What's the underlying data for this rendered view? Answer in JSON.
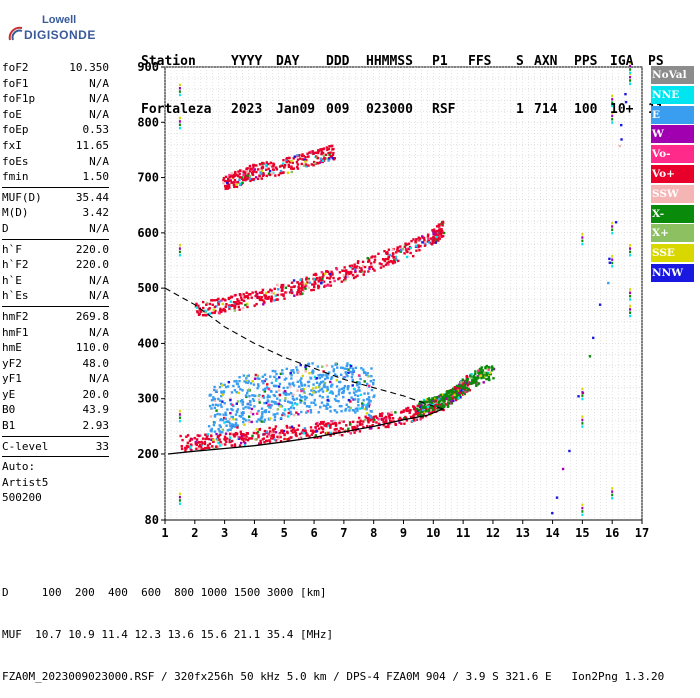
{
  "logo": {
    "top": "Lowell",
    "bottom": "DIGISONDE"
  },
  "header": {
    "labels": [
      "Station",
      "YYYY",
      "DAY",
      "DDD",
      "HHMMSS",
      "P1",
      "FFS",
      "S",
      "AXN",
      "PPS",
      "IGA",
      "PS"
    ],
    "values": [
      "Fortaleza",
      "2023",
      "Jan09",
      "009",
      "023000",
      "RSF",
      "",
      "1",
      "714",
      "100",
      "10+",
      "11"
    ]
  },
  "params": {
    "group1": [
      {
        "k": "foF2",
        "v": "10.350"
      },
      {
        "k": "foF1",
        "v": "N/A"
      },
      {
        "k": "foF1p",
        "v": "N/A"
      },
      {
        "k": "foE",
        "v": "N/A"
      },
      {
        "k": "foEp",
        "v": "0.53"
      },
      {
        "k": "fxI",
        "v": "11.65"
      },
      {
        "k": "foEs",
        "v": "N/A"
      },
      {
        "k": "fmin",
        "v": "1.50"
      }
    ],
    "group2": [
      {
        "k": "MUF(D)",
        "v": "35.44"
      },
      {
        "k": "M(D)",
        "v": "3.42"
      },
      {
        "k": "D",
        "v": "N/A"
      }
    ],
    "group3": [
      {
        "k": "h`F",
        "v": "220.0"
      },
      {
        "k": "h`F2",
        "v": "220.0"
      },
      {
        "k": "h`E",
        "v": "N/A"
      },
      {
        "k": "h`Es",
        "v": "N/A"
      }
    ],
    "group4": [
      {
        "k": "hmF2",
        "v": "269.8"
      },
      {
        "k": "hmF1",
        "v": "N/A"
      },
      {
        "k": "hmE",
        "v": "110.0"
      },
      {
        "k": "yF2",
        "v": "48.0"
      },
      {
        "k": "yF1",
        "v": "N/A"
      },
      {
        "k": "yE",
        "v": "20.0"
      },
      {
        "k": "B0",
        "v": "43.9"
      },
      {
        "k": "B1",
        "v": "2.93"
      }
    ],
    "group5": [
      {
        "k": "C-level",
        "v": "33"
      }
    ],
    "autoscale": [
      "Auto:",
      "Artist5",
      "500200"
    ]
  },
  "legend": [
    {
      "label": "NoVal",
      "color": "#8c8c8c"
    },
    {
      "label": "NNE",
      "color": "#00e5f0"
    },
    {
      "label": "E",
      "color": "#3a9ef0"
    },
    {
      "label": "W",
      "color": "#a000b0"
    },
    {
      "label": "Vo-",
      "color": "#ff2a8a"
    },
    {
      "label": "Vo+",
      "color": "#e8002a"
    },
    {
      "label": "SSW",
      "color": "#f5b5b5"
    },
    {
      "label": "X-",
      "color": "#0a8a0a"
    },
    {
      "label": "X+",
      "color": "#8cc060"
    },
    {
      "label": "SSE",
      "color": "#d8d800"
    },
    {
      "label": "NNW",
      "color": "#1818e0"
    }
  ],
  "footer": {
    "line1": "D     100  200  400  600  800 1000 1500 3000 [km]",
    "line2": "MUF  10.7 10.9 11.4 12.3 13.6 15.6 21.1 35.4 [MHz]",
    "line3": "FZA0M_2023009023000.RSF / 320fx256h 50 kHz 5.0 km / DPS-4 FZA0M 904 / 3.9 S 321.6 E   Ion2Png 1.3.20"
  },
  "chart_data": {
    "type": "scatter",
    "title": "",
    "xlabel": "",
    "ylabel": "",
    "xlim": [
      1,
      17
    ],
    "ylim": [
      80,
      900
    ],
    "y_scale": "piecewise: 80-200 compressed, 200-900 linear",
    "x_ticks": [
      1,
      2,
      3,
      4,
      5,
      6,
      7,
      8,
      9,
      10,
      11,
      12,
      13,
      14,
      15,
      16,
      17
    ],
    "y_ticks": [
      80,
      200,
      300,
      400,
      500,
      600,
      700,
      800,
      900
    ],
    "grid": true,
    "series": [
      {
        "name": "Vo+",
        "points": [
          [
            1.5,
            220
          ],
          [
            2.5,
            222
          ],
          [
            3.5,
            228
          ],
          [
            4.5,
            235
          ],
          [
            5.5,
            240
          ],
          [
            6.5,
            245
          ],
          [
            7.5,
            252
          ],
          [
            8.5,
            262
          ],
          [
            9.5,
            275
          ],
          [
            10.2,
            290
          ],
          [
            10.8,
            310
          ],
          [
            11.2,
            330
          ]
        ]
      },
      {
        "name": "E",
        "points": [
          [
            2.5,
            275
          ],
          [
            3.0,
            285
          ],
          [
            3.5,
            295
          ],
          [
            4.0,
            300
          ],
          [
            4.5,
            305
          ],
          [
            5.0,
            310
          ],
          [
            5.5,
            315
          ],
          [
            6.0,
            320
          ],
          [
            6.5,
            318
          ],
          [
            7.0,
            320
          ],
          [
            7.5,
            315
          ],
          [
            8.0,
            310
          ]
        ]
      },
      {
        "name": "Vo+",
        "points": [
          [
            2.0,
            460
          ],
          [
            3.0,
            470
          ],
          [
            4.0,
            480
          ],
          [
            5.0,
            495
          ],
          [
            6.0,
            510
          ],
          [
            7.0,
            525
          ],
          [
            8.0,
            545
          ],
          [
            9.0,
            565
          ],
          [
            10.0,
            590
          ],
          [
            10.3,
            610
          ]
        ]
      },
      {
        "name": "Vo+",
        "points": [
          [
            3.0,
            690
          ],
          [
            3.5,
            700
          ],
          [
            4.0,
            710
          ],
          [
            5.0,
            720
          ],
          [
            6.0,
            735
          ],
          [
            6.7,
            748
          ]
        ]
      },
      {
        "name": "X-",
        "points": [
          [
            9.5,
            280
          ],
          [
            10.0,
            290
          ],
          [
            10.5,
            300
          ],
          [
            11.0,
            320
          ],
          [
            11.5,
            340
          ],
          [
            12.0,
            350
          ]
        ]
      },
      {
        "name": "NNW",
        "points": [
          [
            14.0,
            90
          ],
          [
            15.0,
            310
          ],
          [
            16.0,
            560
          ],
          [
            16.5,
            870
          ]
        ]
      }
    ],
    "profile_line": [
      [
        1.1,
        200
      ],
      [
        2,
        205
      ],
      [
        3,
        210
      ],
      [
        4,
        215
      ],
      [
        5,
        222
      ],
      [
        6,
        230
      ],
      [
        7,
        240
      ],
      [
        8,
        250
      ],
      [
        9,
        262
      ],
      [
        9.8,
        270
      ],
      [
        10.35,
        282
      ]
    ],
    "dashed_line": [
      [
        1.0,
        500
      ],
      [
        2,
        470
      ],
      [
        3,
        430
      ],
      [
        4,
        400
      ],
      [
        5,
        375
      ],
      [
        6,
        355
      ],
      [
        7,
        335
      ],
      [
        8,
        320
      ],
      [
        9,
        305
      ],
      [
        9.8,
        290
      ],
      [
        10.3,
        282
      ]
    ]
  }
}
